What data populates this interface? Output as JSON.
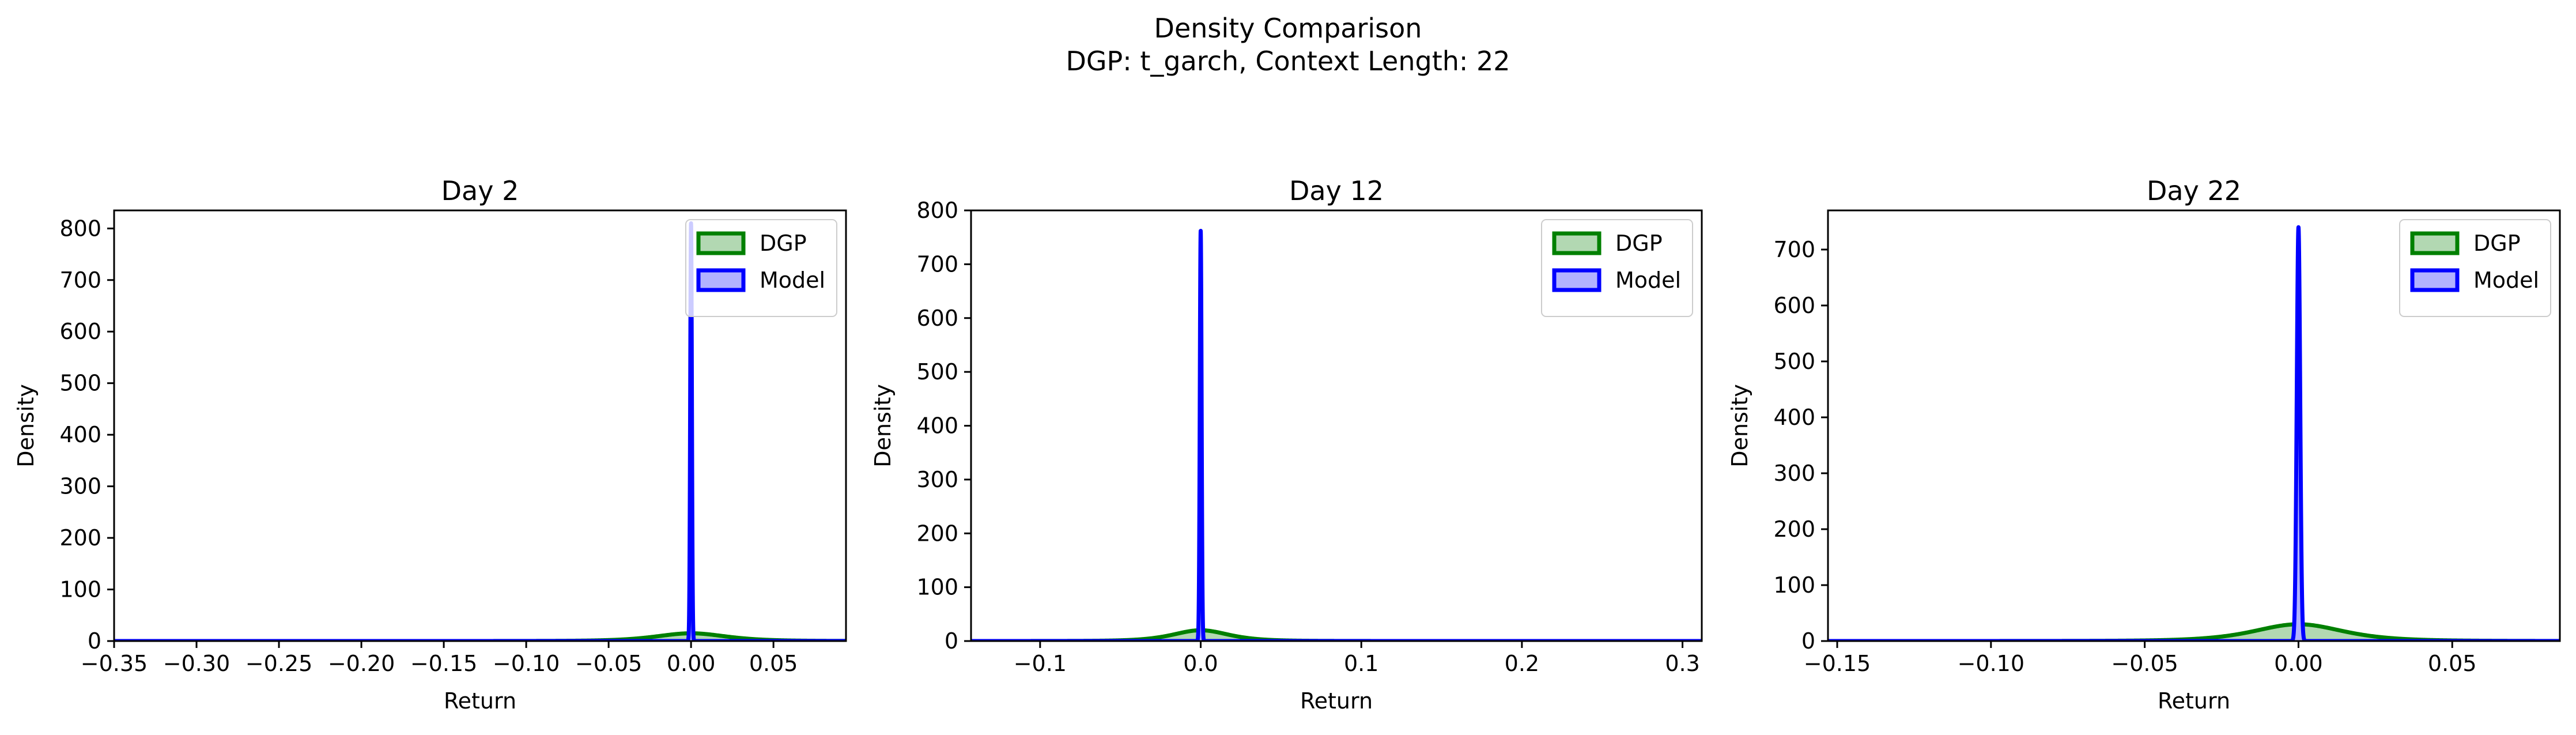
{
  "figure": {
    "title_line1": "Density Comparison",
    "title_line2": "DGP: t_garch, Context Length: 22"
  },
  "colors": {
    "dgp_line": "#008000",
    "dgp_fill": "#b2d8b2",
    "model_line": "#0000ff",
    "model_fill": "#b2b2ff"
  },
  "chart_data": [
    {
      "type": "area",
      "title": "Day 2",
      "xlabel": "Return",
      "ylabel": "Density",
      "xlim": [
        -0.35,
        0.094
      ],
      "ylim": [
        0,
        835
      ],
      "xticks": [
        -0.35,
        -0.3,
        -0.25,
        -0.2,
        -0.15,
        -0.1,
        -0.05,
        0.0,
        0.05
      ],
      "xtick_labels": [
        "−0.35",
        "−0.30",
        "−0.25",
        "−0.20",
        "−0.15",
        "−0.10",
        "−0.05",
        "0.00",
        "0.05"
      ],
      "yticks": [
        0,
        100,
        200,
        300,
        400,
        500,
        600,
        700,
        800
      ],
      "legend": {
        "position": "upper right",
        "entries": [
          "DGP",
          "Model"
        ]
      },
      "series": [
        {
          "name": "DGP",
          "kind": "t",
          "center": 0.0,
          "scale": 0.022,
          "df": 4,
          "peak": 15,
          "tail_sigma": 0.008
        },
        {
          "name": "Model",
          "kind": "gauss",
          "center": 0.0,
          "sigma": 0.0005,
          "peak": 810
        }
      ],
      "grid": false
    },
    {
      "type": "area",
      "title": "Day 12",
      "xlabel": "Return",
      "ylabel": "Density",
      "xlim": [
        -0.143,
        0.312
      ],
      "ylim": [
        0,
        800
      ],
      "xticks": [
        -0.1,
        0.0,
        0.1,
        0.2,
        0.3
      ],
      "xtick_labels": [
        "−0.1",
        "0.0",
        "0.1",
        "0.2",
        "0.3"
      ],
      "yticks": [
        0,
        100,
        200,
        300,
        400,
        500,
        600,
        700,
        800
      ],
      "legend": {
        "position": "upper right",
        "entries": [
          "DGP",
          "Model"
        ]
      },
      "series": [
        {
          "name": "DGP",
          "kind": "t",
          "center": 0.0,
          "scale": 0.018,
          "df": 4,
          "peak": 20,
          "tail_sigma": 0.006
        },
        {
          "name": "Model",
          "kind": "gauss",
          "center": 0.0,
          "sigma": 0.00055,
          "peak": 762
        }
      ],
      "grid": false
    },
    {
      "type": "area",
      "title": "Day 22",
      "xlabel": "Return",
      "ylabel": "Density",
      "xlim": [
        -0.153,
        0.085
      ],
      "ylim": [
        0,
        770
      ],
      "xticks": [
        -0.15,
        -0.1,
        -0.05,
        0.0,
        0.05
      ],
      "xtick_labels": [
        "−0.15",
        "−0.10",
        "−0.05",
        "0.00",
        "0.05"
      ],
      "yticks": [
        0,
        100,
        200,
        300,
        400,
        500,
        600,
        700
      ],
      "legend": {
        "position": "upper right",
        "entries": [
          "DGP",
          "Model"
        ]
      },
      "series": [
        {
          "name": "DGP",
          "kind": "t",
          "center": 0.0,
          "scale": 0.015,
          "df": 4,
          "peak": 30,
          "tail_sigma": 0.005
        },
        {
          "name": "Model",
          "kind": "gauss",
          "center": 0.0,
          "sigma": 0.00055,
          "peak": 740
        }
      ],
      "grid": false
    }
  ]
}
